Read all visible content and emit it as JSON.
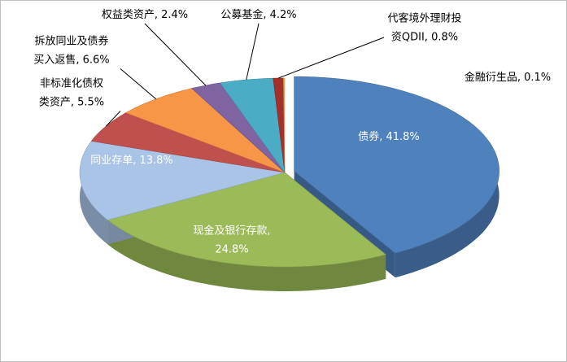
{
  "chart_data": {
    "type": "pie3d",
    "categories": [
      "债券",
      "现金及银行存款",
      "同业存单",
      "非标准化债权类资产",
      "拆放同业及债券买入返售",
      "权益类资产",
      "公募基金",
      "代客境外理财投资QDII",
      "金融衍生品"
    ],
    "values": [
      41.8,
      24.8,
      13.8,
      5.5,
      6.6,
      2.4,
      4.2,
      0.8,
      0.1
    ],
    "value_labels": [
      "债券, 41.8%",
      "现金及银行存款,\n24.8%",
      "同业存单, 13.8%",
      "非标准化债权\n类资产, 5.5%",
      "拆放同业及债券\n买入返售, 6.6%",
      "权益类资产, 2.4%",
      "公募基金, 4.2%",
      "代客境外理财投\n资QDII, 0.8%",
      "金融衍生品, 0.1%"
    ],
    "colors": [
      "#4f81bd",
      "#9bbb59",
      "#a9c4e6",
      "#c0504d",
      "#f79646",
      "#8064a2",
      "#4bacc6",
      "#a3302a",
      "#e0b050"
    ],
    "explode": [
      0
    ]
  }
}
